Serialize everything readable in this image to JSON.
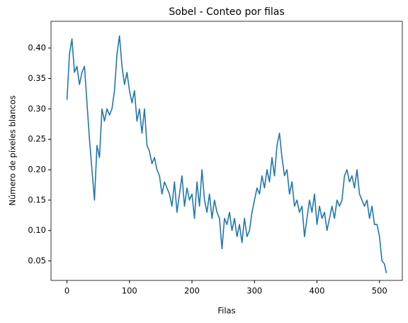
{
  "chart_data": {
    "type": "line",
    "title": "Sobel - Conteo por filas",
    "xlabel": "Filas",
    "ylabel": "Número de píxeles blancos",
    "color": "#1f77b4",
    "x": [
      0,
      4,
      8,
      12,
      16,
      20,
      24,
      28,
      32,
      36,
      40,
      44,
      48,
      52,
      56,
      60,
      64,
      68,
      72,
      76,
      80,
      84,
      88,
      92,
      96,
      100,
      104,
      108,
      112,
      116,
      120,
      124,
      128,
      132,
      136,
      140,
      144,
      148,
      152,
      156,
      160,
      164,
      168,
      172,
      176,
      180,
      184,
      188,
      192,
      196,
      200,
      204,
      208,
      212,
      216,
      220,
      224,
      228,
      232,
      236,
      240,
      244,
      248,
      252,
      256,
      260,
      264,
      268,
      272,
      276,
      280,
      284,
      288,
      292,
      296,
      300,
      304,
      308,
      312,
      316,
      320,
      324,
      328,
      332,
      336,
      340,
      344,
      348,
      352,
      356,
      360,
      364,
      368,
      372,
      376,
      380,
      384,
      388,
      392,
      396,
      400,
      404,
      408,
      412,
      416,
      420,
      424,
      428,
      432,
      436,
      440,
      444,
      448,
      452,
      456,
      460,
      464,
      468,
      472,
      476,
      480,
      484,
      488,
      492,
      496,
      500,
      504,
      508,
      511
    ],
    "values": [
      0.315,
      0.39,
      0.415,
      0.36,
      0.37,
      0.34,
      0.36,
      0.37,
      0.31,
      0.25,
      0.2,
      0.15,
      0.24,
      0.22,
      0.3,
      0.28,
      0.3,
      0.29,
      0.3,
      0.33,
      0.39,
      0.42,
      0.37,
      0.34,
      0.36,
      0.33,
      0.31,
      0.33,
      0.28,
      0.3,
      0.26,
      0.3,
      0.24,
      0.23,
      0.21,
      0.22,
      0.2,
      0.19,
      0.16,
      0.18,
      0.17,
      0.16,
      0.14,
      0.18,
      0.13,
      0.16,
      0.19,
      0.14,
      0.17,
      0.15,
      0.16,
      0.12,
      0.18,
      0.14,
      0.2,
      0.15,
      0.13,
      0.16,
      0.12,
      0.15,
      0.13,
      0.12,
      0.07,
      0.12,
      0.11,
      0.13,
      0.1,
      0.12,
      0.09,
      0.11,
      0.08,
      0.12,
      0.09,
      0.1,
      0.13,
      0.15,
      0.17,
      0.16,
      0.19,
      0.17,
      0.2,
      0.18,
      0.22,
      0.19,
      0.24,
      0.26,
      0.22,
      0.19,
      0.2,
      0.16,
      0.18,
      0.14,
      0.15,
      0.13,
      0.14,
      0.09,
      0.12,
      0.15,
      0.13,
      0.16,
      0.11,
      0.14,
      0.12,
      0.13,
      0.1,
      0.12,
      0.14,
      0.12,
      0.15,
      0.14,
      0.15,
      0.19,
      0.2,
      0.18,
      0.19,
      0.17,
      0.2,
      0.16,
      0.15,
      0.14,
      0.15,
      0.12,
      0.14,
      0.11,
      0.11,
      0.09,
      0.05,
      0.045,
      0.03
    ],
    "xlim": [
      -25.55,
      536.55
    ],
    "xticks": [
      0,
      100,
      200,
      300,
      400,
      500
    ],
    "ylim": [
      0.018,
      0.444
    ],
    "yticks": [
      0.05,
      {
        "value": 0.1,
        "label": "0.10"
      },
      0.15,
      {
        "value": 0.2,
        "label": "0.20"
      },
      0.25,
      {
        "value": 0.3,
        "label": "0.30"
      },
      0.35,
      {
        "value": 0.4,
        "label": "0.40"
      }
    ]
  }
}
